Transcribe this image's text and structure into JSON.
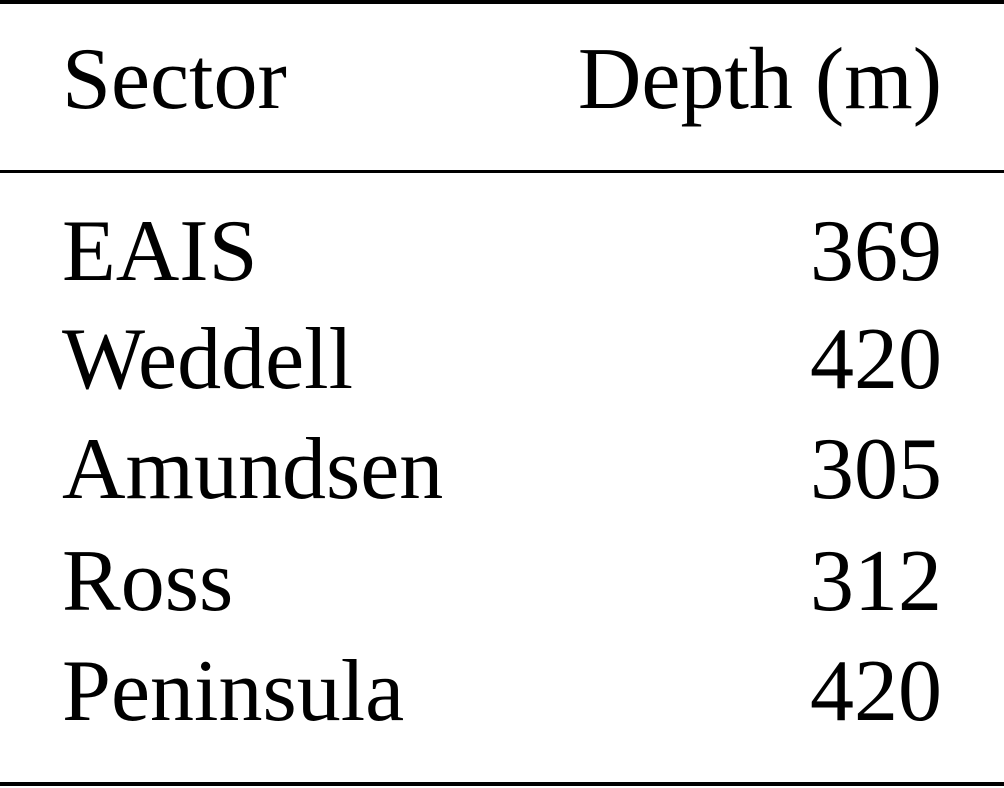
{
  "table": {
    "headers": [
      "Sector",
      "Depth (m)"
    ],
    "rows": [
      {
        "sector": "EAIS",
        "depth": "369"
      },
      {
        "sector": "Weddell",
        "depth": "420"
      },
      {
        "sector": "Amundsen",
        "depth": "305"
      },
      {
        "sector": "Ross",
        "depth": "312"
      },
      {
        "sector": "Peninsula",
        "depth": "420"
      }
    ]
  }
}
